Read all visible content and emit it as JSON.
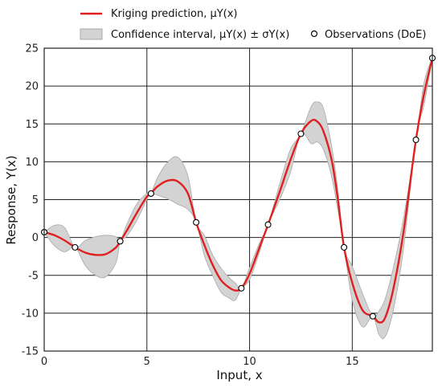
{
  "chart_data": {
    "type": "line",
    "xlabel": "Input, x",
    "ylabel": "Response, Y(x)",
    "xlim": [
      0,
      18.9
    ],
    "ylim": [
      -15,
      25
    ],
    "x_ticks": [
      0,
      5,
      10,
      15
    ],
    "y_ticks": [
      -15,
      -10,
      -5,
      0,
      5,
      10,
      15,
      20,
      25
    ],
    "x_tick_labels": [
      "0",
      "5",
      "10",
      "15"
    ],
    "y_tick_labels": [
      "-15",
      "-10",
      "-5",
      "0",
      "5",
      "10",
      "15",
      "20",
      "25"
    ],
    "grid": true,
    "legend": {
      "placement": "top",
      "prediction": "Kriging prediction, μY(x)",
      "interval": "Confidence interval, μY(x) ± σY(x)",
      "observations": "Observations (DoE)"
    },
    "colors": {
      "prediction": "#e02020",
      "interval_fill": "#d3d3d3",
      "interval_edge": "#a9a9a9",
      "observation": "#000000"
    },
    "observations": [
      {
        "x": 0.0,
        "y": 0.7
      },
      {
        "x": 1.5,
        "y": -1.3
      },
      {
        "x": 3.7,
        "y": -0.5
      },
      {
        "x": 5.2,
        "y": 5.8
      },
      {
        "x": 7.4,
        "y": 2.0
      },
      {
        "x": 9.6,
        "y": -6.7
      },
      {
        "x": 10.9,
        "y": 1.7
      },
      {
        "x": 12.5,
        "y": 13.7
      },
      {
        "x": 14.6,
        "y": -1.3
      },
      {
        "x": 16.0,
        "y": -10.4
      },
      {
        "x": 18.1,
        "y": 12.9
      },
      {
        "x": 18.9,
        "y": 23.7
      }
    ],
    "prediction": {
      "x": [
        0.0,
        0.5,
        1.0,
        1.5,
        2.0,
        2.5,
        3.0,
        3.5,
        3.7,
        4.0,
        4.5,
        5.0,
        5.2,
        5.5,
        6.0,
        6.5,
        7.0,
        7.4,
        7.8,
        8.2,
        8.6,
        9.0,
        9.3,
        9.6,
        10.0,
        10.5,
        10.9,
        11.5,
        12.0,
        12.5,
        13.0,
        13.3,
        13.6,
        14.0,
        14.3,
        14.6,
        15.0,
        15.5,
        16.0,
        16.3,
        16.6,
        17.0,
        17.5,
        18.1,
        18.5,
        18.9
      ],
      "y": [
        0.7,
        0.3,
        -0.4,
        -1.3,
        -2.0,
        -2.3,
        -2.2,
        -1.3,
        -0.5,
        0.8,
        3.2,
        5.4,
        5.8,
        6.7,
        7.5,
        7.4,
        5.8,
        2.0,
        -1.0,
        -3.6,
        -5.6,
        -6.6,
        -7.0,
        -6.7,
        -4.8,
        -1.2,
        1.7,
        6.3,
        10.3,
        13.7,
        15.4,
        15.3,
        14.0,
        10.2,
        5.0,
        -1.3,
        -6.0,
        -9.6,
        -10.4,
        -11.2,
        -10.6,
        -6.8,
        0.8,
        12.9,
        19.0,
        23.7
      ]
    },
    "confidence_interval": {
      "x": [
        0.0,
        0.5,
        1.0,
        1.5,
        2.0,
        2.5,
        3.0,
        3.5,
        3.7,
        4.0,
        4.5,
        5.0,
        5.2,
        5.5,
        6.0,
        6.5,
        7.0,
        7.4,
        7.8,
        8.2,
        8.6,
        9.0,
        9.3,
        9.6,
        10.0,
        10.5,
        10.9,
        11.5,
        12.0,
        12.5,
        13.0,
        13.3,
        13.6,
        14.0,
        14.3,
        14.6,
        15.0,
        15.5,
        16.0,
        16.3,
        16.6,
        17.0,
        17.5,
        18.1,
        18.5,
        18.9
      ],
      "upper": [
        0.7,
        1.6,
        1.3,
        -1.3,
        -0.4,
        0.1,
        0.3,
        0.1,
        -0.5,
        1.6,
        4.4,
        5.8,
        5.8,
        7.8,
        9.9,
        10.6,
        8.1,
        2.0,
        0.3,
        -2.3,
        -4.0,
        -5.3,
        -6.0,
        -6.7,
        -4.0,
        -0.6,
        1.7,
        7.4,
        11.7,
        13.7,
        17.3,
        17.9,
        17.0,
        12.0,
        6.3,
        -1.3,
        -3.8,
        -7.4,
        -10.4,
        -9.7,
        -8.1,
        -4.0,
        2.6,
        12.9,
        20.5,
        23.7
      ],
      "lower": [
        0.7,
        -1.1,
        -1.9,
        -1.3,
        -3.7,
        -5.0,
        -5.2,
        -3.3,
        -0.5,
        0.1,
        2.2,
        5.0,
        5.8,
        5.6,
        5.1,
        4.4,
        3.7,
        2.0,
        -2.4,
        -5.0,
        -7.2,
        -8.0,
        -8.3,
        -6.7,
        -5.6,
        -1.8,
        1.7,
        5.2,
        8.7,
        13.7,
        12.4,
        12.6,
        11.6,
        8.0,
        3.6,
        -1.3,
        -8.3,
        -11.8,
        -10.4,
        -12.8,
        -13.1,
        -9.6,
        -1.4,
        12.9,
        17.6,
        23.7
      ]
    }
  }
}
